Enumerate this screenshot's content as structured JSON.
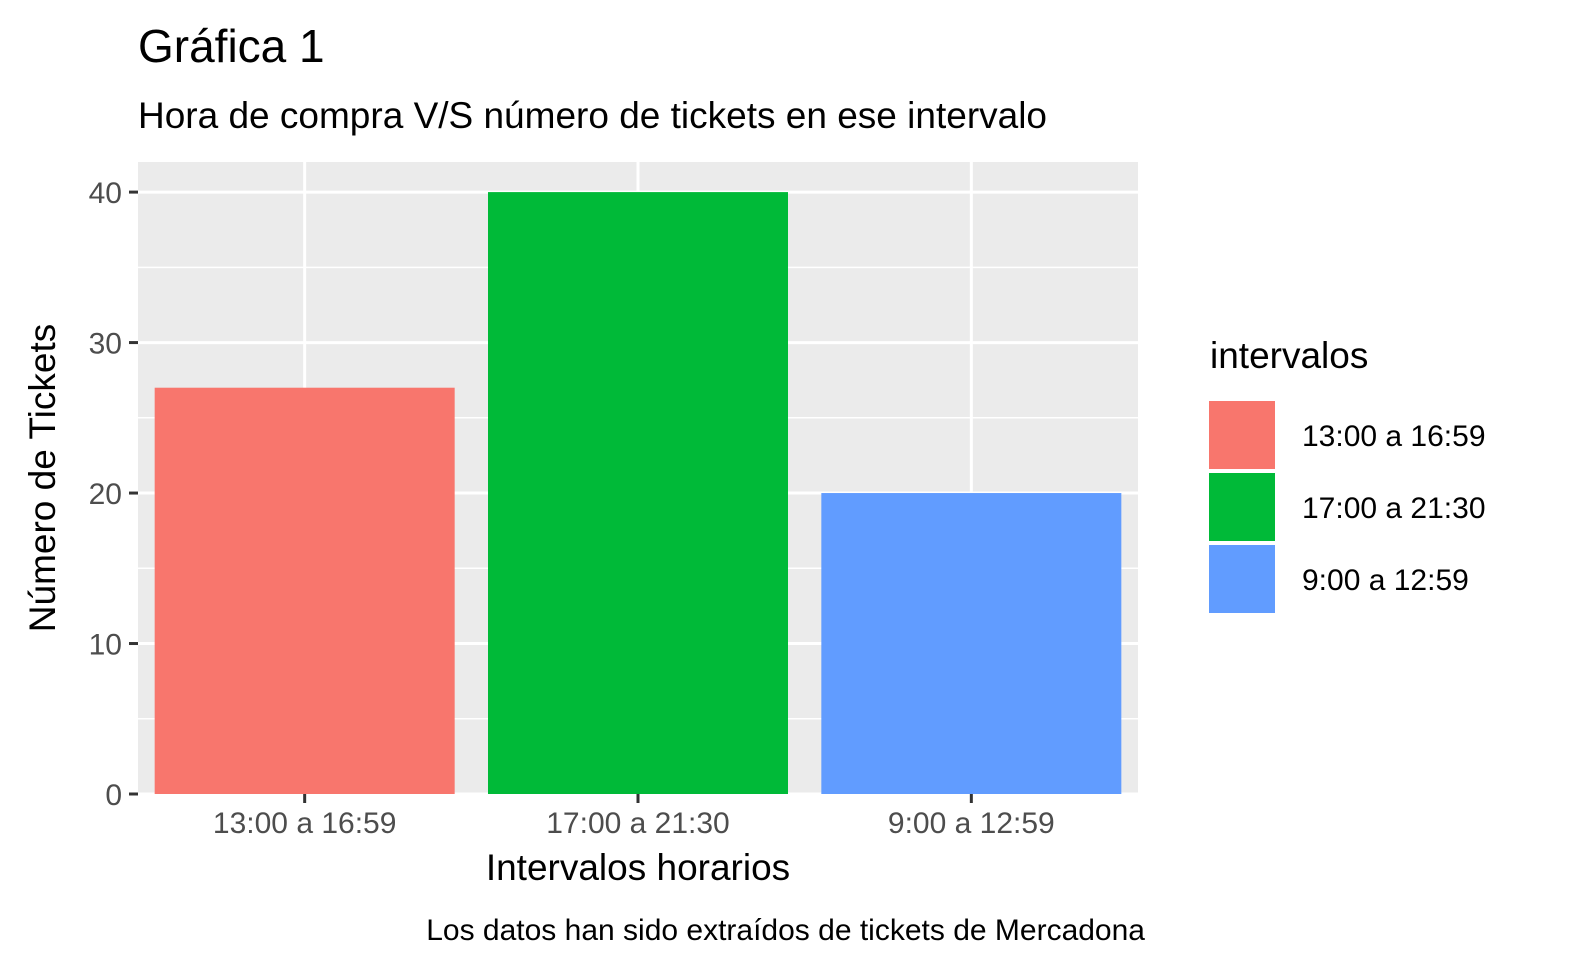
{
  "chart_data": {
    "type": "bar",
    "title": "Gráfica 1",
    "subtitle": "Hora de compra V/S número de tickets en ese intervalo",
    "xlabel": "Intervalos horarios",
    "ylabel": "Número de Tickets",
    "caption": "Los datos han sido extraídos de tickets de Mercadona",
    "categories": [
      "13:00 a 16:59",
      "17:00 a 21:30",
      "9:00 a 12:59"
    ],
    "values": [
      27,
      40,
      20
    ],
    "colors": [
      "#F8766D",
      "#00BA38",
      "#619CFF"
    ],
    "ylim": [
      0,
      42
    ],
    "yticks": [
      0,
      10,
      20,
      30,
      40
    ],
    "grid": true,
    "panel_background": "#EBEBEB",
    "legend": {
      "title": "intervalos",
      "placement": "right",
      "entries": [
        {
          "label": "13:00 a 16:59",
          "color": "#F8766D"
        },
        {
          "label": "17:00 a 21:30",
          "color": "#00BA38"
        },
        {
          "label": "9:00 a 12:59",
          "color": "#619CFF"
        }
      ]
    }
  }
}
